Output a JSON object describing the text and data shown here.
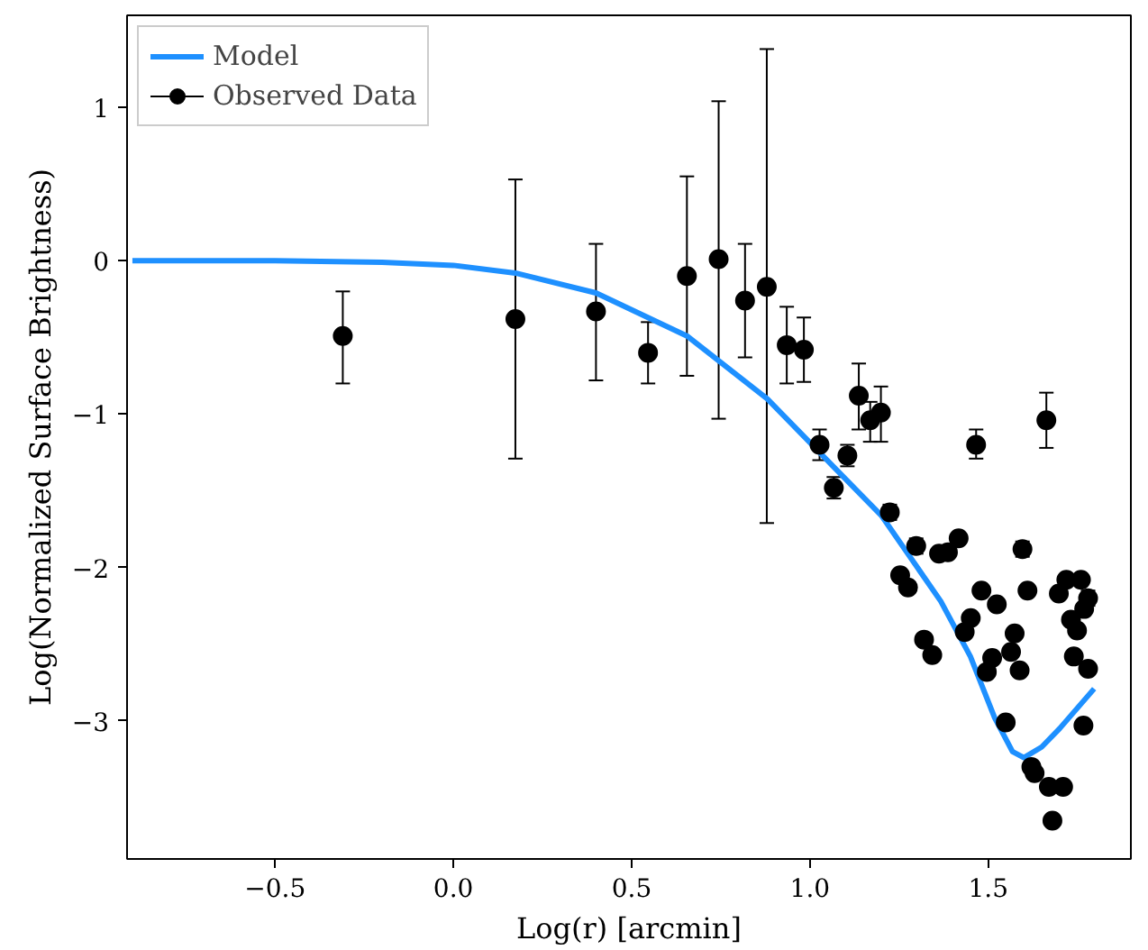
{
  "chart_data": {
    "type": "scatter",
    "xlabel": "Log(r) [arcmin]",
    "ylabel": "Log(Normalized Surface Brightness)",
    "xlim": [
      -0.915,
      1.9
    ],
    "ylim": [
      -3.9,
      1.6
    ],
    "xticks": [
      {
        "value": -0.5,
        "label": "−0.5"
      },
      {
        "value": 0,
        "label": "0.0"
      },
      {
        "value": 0.5,
        "label": "0.5"
      },
      {
        "value": 1,
        "label": "1.0"
      },
      {
        "value": 1.5,
        "label": "1.5"
      }
    ],
    "yticks": [
      {
        "value": -3,
        "label": "−3"
      },
      {
        "value": -2,
        "label": "−2"
      },
      {
        "value": -1,
        "label": "−1"
      },
      0,
      1
    ],
    "legend": "top left",
    "series": [
      {
        "name": "Model",
        "type": "line",
        "color": "#1e90ff",
        "x": [
          -0.9,
          -0.5,
          -0.2,
          0,
          0.174,
          0.4,
          0.655,
          0.88,
          1.065,
          1.2,
          1.367,
          1.45,
          1.518,
          1.568,
          1.6,
          1.65,
          1.7,
          1.797
        ],
        "values": [
          0,
          0,
          -0.01,
          -0.03,
          -0.08,
          -0.21,
          -0.49,
          -0.9,
          -1.34,
          -1.66,
          -2.22,
          -2.58,
          -2.98,
          -3.2,
          -3.24,
          -3.17,
          -3.05,
          -2.79
        ]
      },
      {
        "name": "Observed Data",
        "color": "#000000",
        "marker": "circle",
        "x": [
          -0.31,
          0.174,
          0.4,
          0.546,
          0.655,
          0.744,
          0.818,
          0.879,
          0.935,
          0.983,
          1.027,
          1.067,
          1.105,
          1.137,
          1.169,
          1.199,
          1.466,
          1.663,
          1.224,
          1.298,
          1.253,
          1.275,
          1.362,
          1.387,
          1.417,
          1.32,
          1.343,
          1.481,
          1.524,
          1.451,
          1.434,
          1.511,
          1.496,
          1.574,
          1.564,
          1.588,
          1.596,
          1.61,
          1.549,
          1.621,
          1.63,
          1.67,
          1.71,
          1.68,
          1.698,
          1.719,
          1.76,
          1.78,
          1.769,
          1.732,
          1.749,
          1.74,
          1.78,
          1.767
        ],
        "values": [
          -0.49,
          -0.38,
          -0.33,
          -0.6,
          -0.1,
          0.01,
          -0.26,
          -0.17,
          -0.55,
          -0.58,
          -1.2,
          -1.48,
          -1.27,
          -0.88,
          -1.04,
          -0.99,
          -1.2,
          -1.04,
          -1.64,
          -1.86,
          -2.05,
          -2.13,
          -1.91,
          -1.9,
          -1.81,
          -2.47,
          -2.57,
          -2.15,
          -2.24,
          -2.33,
          -2.42,
          -2.59,
          -2.68,
          -2.43,
          -2.55,
          -2.67,
          -1.88,
          -2.15,
          -3.01,
          -3.3,
          -3.34,
          -3.43,
          -3.43,
          -3.65,
          -2.17,
          -2.08,
          -2.08,
          -2.2,
          -2.27,
          -2.34,
          -2.41,
          -2.58,
          -2.66,
          -3.03
        ],
        "errors": [
          [
            -0.8,
            -0.2
          ],
          [
            -1.29,
            0.53
          ],
          [
            -0.78,
            0.11
          ],
          [
            -0.8,
            -0.4
          ],
          [
            -0.75,
            0.55
          ],
          [
            -1.03,
            1.04
          ],
          [
            -0.63,
            0.11
          ],
          [
            -1.71,
            1.38
          ],
          [
            -0.8,
            -0.3
          ],
          [
            -0.79,
            -0.37
          ],
          [
            -1.3,
            -1.1
          ],
          0.07,
          0.07,
          [
            -1.1,
            -0.67
          ],
          [
            -1.18,
            -0.92
          ],
          [
            -1.18,
            -0.82
          ],
          [
            -1.29,
            -1.1
          ],
          [
            -1.22,
            -0.86
          ],
          0.05,
          0.05,
          null,
          null,
          null,
          null,
          null,
          null,
          null,
          null,
          null,
          null,
          null,
          null,
          null,
          null,
          null,
          null,
          0.05,
          null,
          null,
          null,
          null,
          null,
          null,
          null,
          null,
          null,
          null,
          0.05,
          null,
          null,
          null,
          null,
          null,
          null
        ]
      }
    ]
  }
}
